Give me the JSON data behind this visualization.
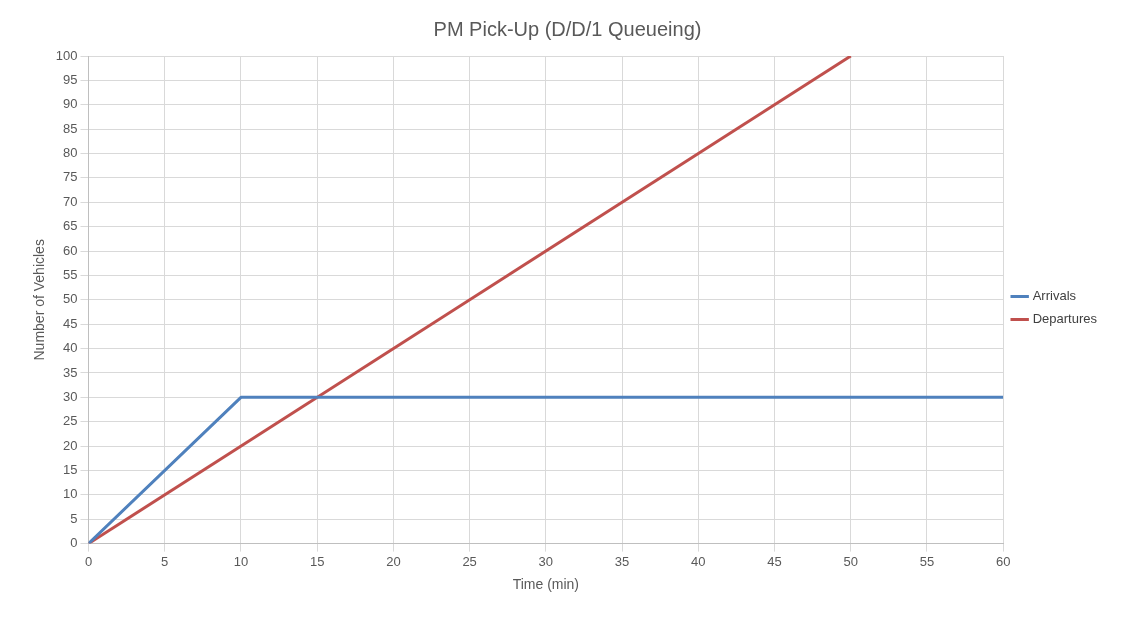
{
  "chart_data": {
    "type": "line",
    "title": "PM Pick-Up (D/D/1 Queueing)",
    "xlabel": "Time (min)",
    "ylabel": "Number of Vehicles",
    "series": [
      {
        "name": "Arrivals",
        "color": "#4f81bd",
        "x": [
          0,
          10,
          60
        ],
        "values": [
          0,
          30,
          30
        ]
      },
      {
        "name": "Departures",
        "color": "#c0504d",
        "x": [
          0,
          50
        ],
        "values": [
          0,
          100
        ]
      }
    ],
    "xlim": [
      0,
      60
    ],
    "xticks": [
      0,
      5,
      10,
      15,
      20,
      25,
      30,
      35,
      40,
      45,
      50,
      55,
      60
    ],
    "ylim": [
      0,
      100
    ],
    "yticks": [
      0,
      5,
      10,
      15,
      20,
      25,
      30,
      35,
      40,
      45,
      50,
      55,
      60,
      65,
      70,
      75,
      80,
      85,
      90,
      95,
      100
    ],
    "grid": true,
    "legend": "right",
    "marker": "none",
    "line_style": "solid"
  }
}
